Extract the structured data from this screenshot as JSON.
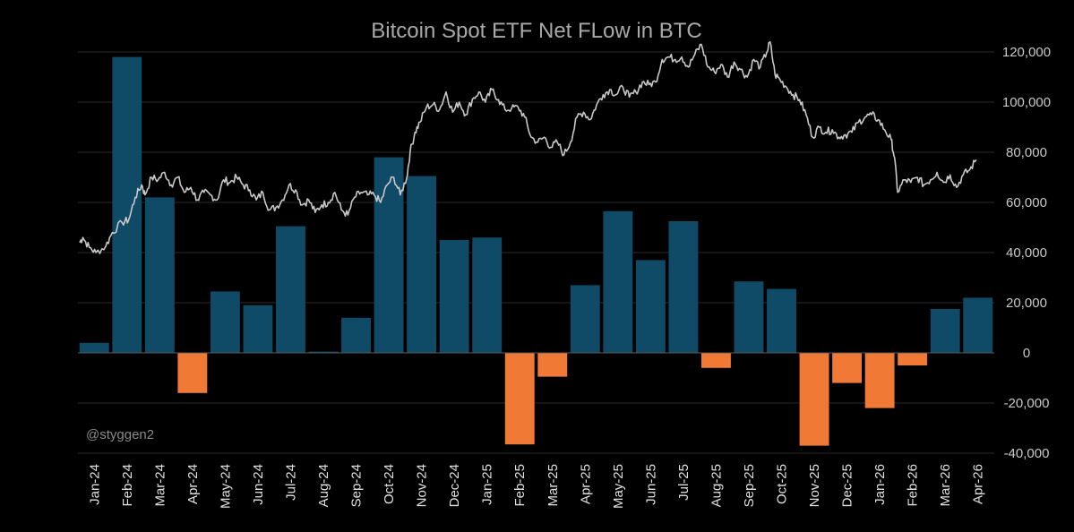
{
  "chart_data": {
    "type": "bar",
    "title": "Bitcoin Spot ETF Net FLow in BTC",
    "watermark": "@styggen2",
    "categories": [
      "Jan-24",
      "Feb-24",
      "Mar-24",
      "Apr-24",
      "May-24",
      "Jun-24",
      "Jul-24",
      "Aug-24",
      "Sep-24",
      "Oct-24",
      "Nov-24",
      "Dec-24",
      "Jan-25",
      "Feb-25",
      "Mar-25",
      "Apr-25",
      "May-25",
      "Jun-25",
      "Jul-25",
      "Aug-25",
      "Sep-25",
      "Oct-25",
      "Nov-25",
      "Dec-25",
      "Jan-26",
      "Feb-26",
      "Mar-26",
      "Apr-26"
    ],
    "values": [
      4000,
      118000,
      62000,
      -16000,
      24500,
      19000,
      50500,
      500,
      14000,
      78000,
      70500,
      45000,
      46000,
      -36500,
      -9500,
      27000,
      56500,
      37000,
      52500,
      -6000,
      28500,
      25500,
      -37000,
      -12000,
      -22000,
      -5000,
      17500,
      22000
    ],
    "ylim": [
      -40000,
      120000
    ],
    "yticks": [
      -40000,
      -20000,
      0,
      20000,
      40000,
      60000,
      80000,
      100000,
      120000
    ],
    "ytick_labels": [
      "-40,000",
      "-20,000",
      "0",
      "20,000",
      "40,000",
      "60,000",
      "80,000",
      "100,000",
      "120,000"
    ],
    "grid": true,
    "colors": {
      "positive": "#0f4a66",
      "negative": "#f07a35",
      "price_line": "#c8c8c8",
      "grid": "#2a2a2a"
    },
    "price_line": {
      "anchors": [
        [
          0.0,
          44000
        ],
        [
          0.1,
          46000
        ],
        [
          0.3,
          42000
        ],
        [
          0.5,
          40000
        ],
        [
          0.8,
          42500
        ],
        [
          1.0,
          48000
        ],
        [
          1.3,
          52000
        ],
        [
          1.5,
          53000
        ],
        [
          1.7,
          62000
        ],
        [
          1.9,
          67000
        ],
        [
          2.0,
          63000
        ],
        [
          2.2,
          70000
        ],
        [
          2.4,
          69000
        ],
        [
          2.6,
          72000
        ],
        [
          2.8,
          67000
        ],
        [
          3.0,
          70000
        ],
        [
          3.2,
          64000
        ],
        [
          3.4,
          66000
        ],
        [
          3.6,
          61000
        ],
        [
          3.8,
          64000
        ],
        [
          4.0,
          63000
        ],
        [
          4.2,
          61000
        ],
        [
          4.4,
          69000
        ],
        [
          4.6,
          68000
        ],
        [
          4.8,
          70000
        ],
        [
          5.0,
          67000
        ],
        [
          5.2,
          65000
        ],
        [
          5.4,
          61000
        ],
        [
          5.6,
          64000
        ],
        [
          5.8,
          57000
        ],
        [
          6.0,
          58000
        ],
        [
          6.2,
          61000
        ],
        [
          6.4,
          67000
        ],
        [
          6.6,
          65000
        ],
        [
          6.8,
          59000
        ],
        [
          7.0,
          61000
        ],
        [
          7.2,
          56000
        ],
        [
          7.4,
          59000
        ],
        [
          7.6,
          60000
        ],
        [
          7.8,
          64000
        ],
        [
          8.0,
          57000
        ],
        [
          8.2,
          55000
        ],
        [
          8.4,
          62000
        ],
        [
          8.6,
          64000
        ],
        [
          8.8,
          63000
        ],
        [
          9.0,
          63000
        ],
        [
          9.2,
          60000
        ],
        [
          9.4,
          67000
        ],
        [
          9.6,
          70000
        ],
        [
          9.8,
          63000
        ],
        [
          10.0,
          70000
        ],
        [
          10.1,
          80000
        ],
        [
          10.25,
          88000
        ],
        [
          10.4,
          92000
        ],
        [
          10.6,
          98000
        ],
        [
          10.8,
          99000
        ],
        [
          11.0,
          97000
        ],
        [
          11.2,
          104000
        ],
        [
          11.4,
          96000
        ],
        [
          11.6,
          100000
        ],
        [
          11.8,
          95000
        ],
        [
          12.0,
          101000
        ],
        [
          12.2,
          104000
        ],
        [
          12.4,
          100000
        ],
        [
          12.6,
          105000
        ],
        [
          12.8,
          101000
        ],
        [
          13.0,
          97000
        ],
        [
          13.2,
          97500
        ],
        [
          13.4,
          98000
        ],
        [
          13.6,
          94000
        ],
        [
          13.8,
          86000
        ],
        [
          14.0,
          84000
        ],
        [
          14.2,
          86000
        ],
        [
          14.4,
          82000
        ],
        [
          14.6,
          84000
        ],
        [
          14.8,
          79000
        ],
        [
          15.0,
          84000
        ],
        [
          15.2,
          94000
        ],
        [
          15.4,
          96000
        ],
        [
          15.6,
          93000
        ],
        [
          15.8,
          99000
        ],
        [
          16.0,
          103000
        ],
        [
          16.2,
          105000
        ],
        [
          16.4,
          103000
        ],
        [
          16.6,
          106000
        ],
        [
          16.8,
          102000
        ],
        [
          17.0,
          104000
        ],
        [
          17.2,
          108000
        ],
        [
          17.4,
          107000
        ],
        [
          17.6,
          108000
        ],
        [
          17.8,
          117000
        ],
        [
          18.0,
          118000
        ],
        [
          18.2,
          117000
        ],
        [
          18.4,
          118000
        ],
        [
          18.6,
          114000
        ],
        [
          18.8,
          119000
        ],
        [
          19.0,
          123000
        ],
        [
          19.2,
          114000
        ],
        [
          19.4,
          112000
        ],
        [
          19.6,
          115000
        ],
        [
          19.8,
          110000
        ],
        [
          20.0,
          116000
        ],
        [
          20.2,
          113000
        ],
        [
          20.4,
          110000
        ],
        [
          20.6,
          117000
        ],
        [
          20.8,
          114000
        ],
        [
          21.0,
          120000
        ],
        [
          21.1,
          124000
        ],
        [
          21.25,
          111000
        ],
        [
          21.4,
          109000
        ],
        [
          21.6,
          106000
        ],
        [
          21.8,
          103000
        ],
        [
          22.0,
          101000
        ],
        [
          22.2,
          95000
        ],
        [
          22.4,
          86000
        ],
        [
          22.6,
          90000
        ],
        [
          22.8,
          88000
        ],
        [
          23.0,
          89000
        ],
        [
          23.2,
          86000
        ],
        [
          23.4,
          87000
        ],
        [
          23.6,
          88000
        ],
        [
          23.8,
          92000
        ],
        [
          24.0,
          94000
        ],
        [
          24.2,
          95000
        ],
        [
          24.4,
          93000
        ],
        [
          24.6,
          89000
        ],
        [
          24.8,
          85000
        ],
        [
          24.9,
          78000
        ],
        [
          25.0,
          64000
        ],
        [
          25.2,
          69000
        ],
        [
          25.4,
          68000
        ],
        [
          25.6,
          70000
        ],
        [
          25.8,
          67000
        ],
        [
          26.0,
          69000
        ],
        [
          26.2,
          72000
        ],
        [
          26.4,
          68000
        ],
        [
          26.6,
          71000
        ],
        [
          26.8,
          66000
        ],
        [
          27.0,
          71000
        ],
        [
          27.2,
          73000
        ],
        [
          27.4,
          77000
        ]
      ]
    }
  }
}
